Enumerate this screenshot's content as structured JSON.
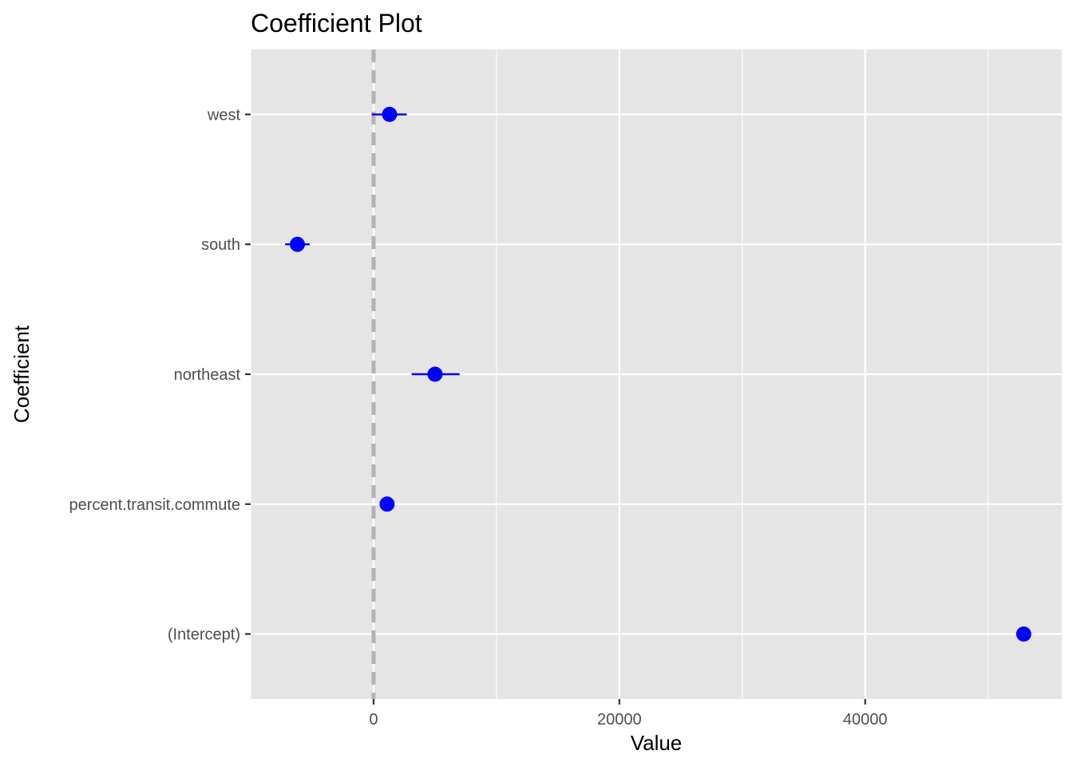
{
  "chart_data": {
    "type": "scatter",
    "title": "Coefficient Plot",
    "xlabel": "Value",
    "ylabel": "Coefficient",
    "xlim": [
      -10000,
      56000
    ],
    "x_ticks": [
      0,
      20000,
      40000
    ],
    "x_tick_labels": [
      "0",
      "20000",
      "40000"
    ],
    "x_minor_ticks": [
      -10000,
      10000,
      30000,
      50000
    ],
    "reference_line": {
      "x": 0,
      "style": "dashed",
      "color": "#b2b2b2"
    },
    "grid": true,
    "legend": "none",
    "point_color": "#0000ff",
    "panel_color": "#e5e5e5",
    "coefficients": [
      {
        "name": "west",
        "value": 1300,
        "low": -150,
        "high": 2700
      },
      {
        "name": "south",
        "value": -6200,
        "low": -7200,
        "high": -5200
      },
      {
        "name": "northeast",
        "value": 5000,
        "low": 3100,
        "high": 7000
      },
      {
        "name": "percent.transit.commute",
        "value": 1100,
        "low": 850,
        "high": 1350
      },
      {
        "name": "(Intercept)",
        "value": 52900,
        "low": 52300,
        "high": 53500
      }
    ]
  }
}
